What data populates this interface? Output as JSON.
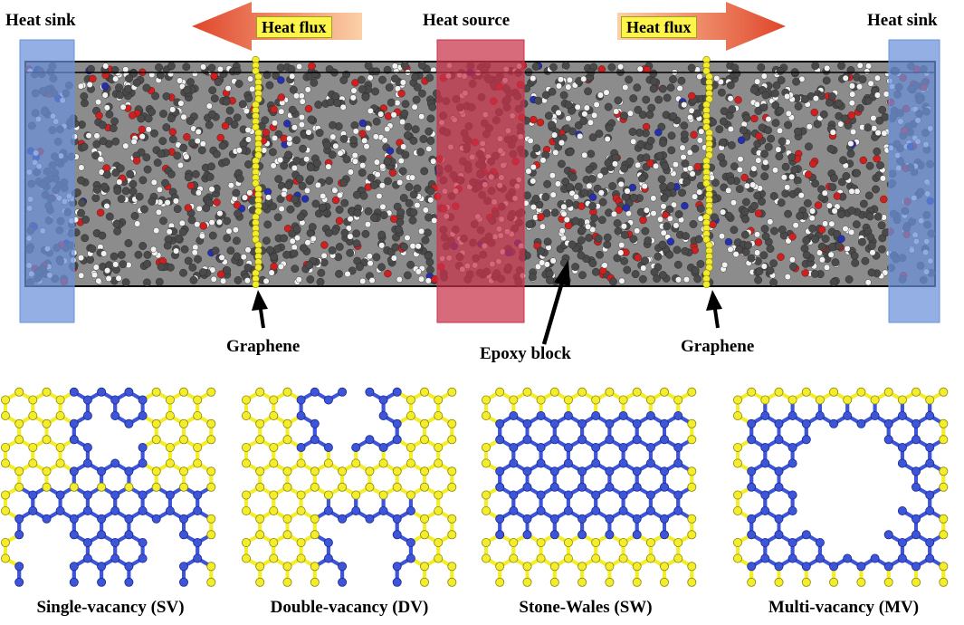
{
  "colors": {
    "sink": "#7b9fd8",
    "source": "#c8324a",
    "graphene_atom": "#f4ee2a",
    "defect_atom": "#3d55d8",
    "carbon": "#4a4a4a",
    "hydrogen": "#f2f2f2",
    "oxygen": "#d01f1f",
    "nitrogen": "#2530b0",
    "flux_arrow_dark": "#e04a2a",
    "flux_arrow_light": "#f8c090"
  },
  "labels": {
    "heat_sink_left": "Heat sink",
    "heat_sink_right": "Heat sink",
    "heat_source": "Heat source",
    "heat_flux_left": "Heat flux",
    "heat_flux_right": "Heat flux",
    "graphene_left": "Graphene",
    "graphene_right": "Graphene",
    "epoxy_block": "Epoxy block"
  },
  "defects": [
    {
      "id": "sv",
      "caption": "Single-vacancy (SV)"
    },
    {
      "id": "dv",
      "caption": "Double-vacancy (DV)"
    },
    {
      "id": "sw",
      "caption": "Stone-Wales (SW)"
    },
    {
      "id": "mv",
      "caption": "Multi-vacancy (MV)"
    }
  ]
}
